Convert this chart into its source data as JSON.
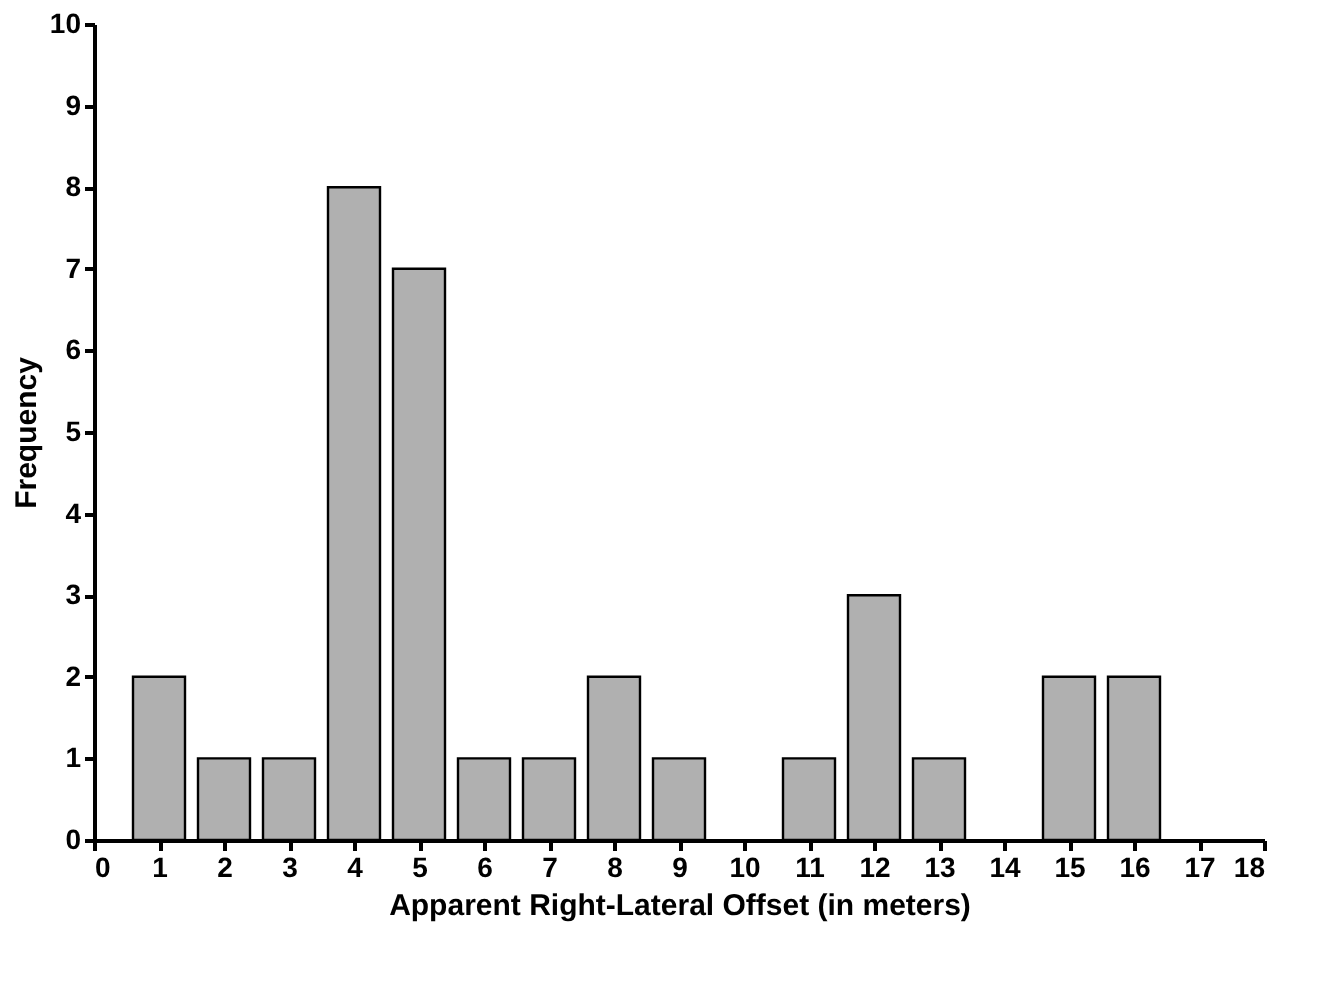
{
  "chart_data": {
    "type": "bar",
    "xlabel": "Apparent Right-Lateral Offset (in meters)",
    "ylabel": "Frequency",
    "x": [
      1,
      2,
      3,
      4,
      5,
      6,
      7,
      8,
      9,
      10,
      11,
      12,
      13,
      14,
      15,
      16
    ],
    "values": [
      2,
      1,
      1,
      8,
      7,
      1,
      1,
      2,
      1,
      0,
      1,
      3,
      1,
      0,
      2,
      2
    ],
    "color": "#b0b0b0",
    "xlim": [
      0,
      18
    ],
    "xticks": [
      0,
      1,
      2,
      3,
      4,
      5,
      6,
      7,
      8,
      9,
      10,
      11,
      12,
      13,
      14,
      15,
      16,
      17,
      18
    ],
    "ylim": [
      0,
      10
    ],
    "yticks": [
      0,
      1,
      2,
      3,
      4,
      5,
      6,
      7,
      8,
      9,
      10
    ],
    "grid": false
  }
}
